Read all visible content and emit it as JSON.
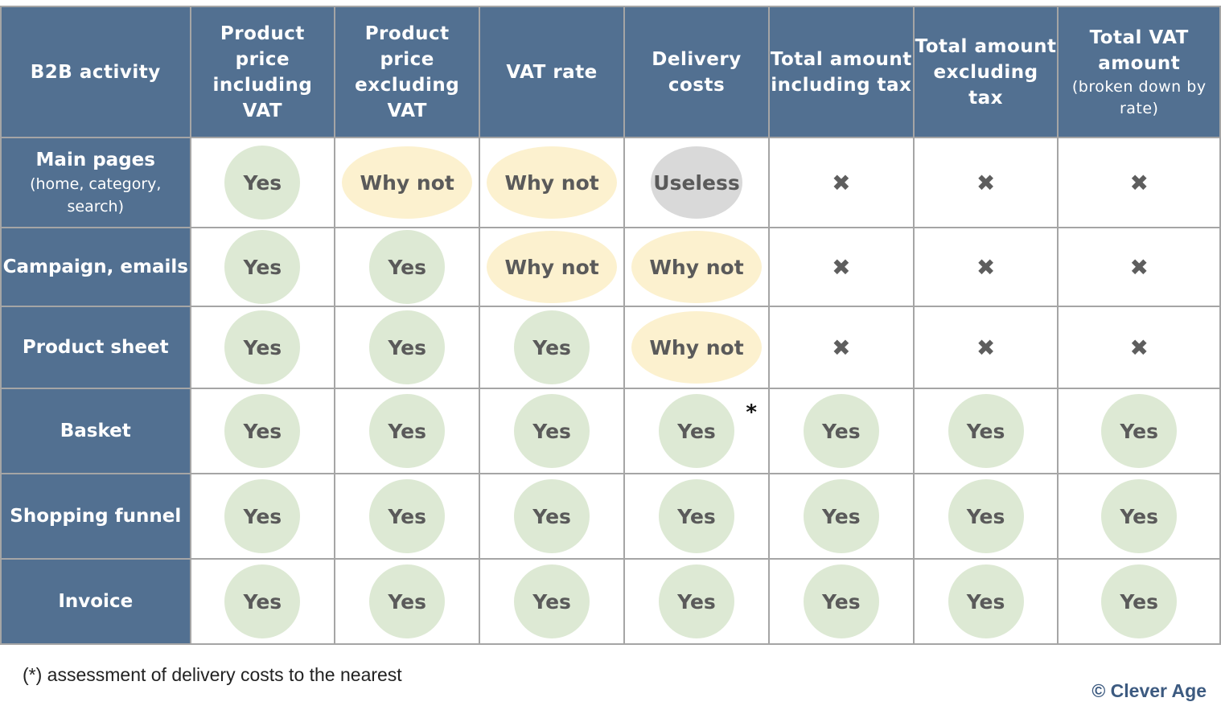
{
  "header": {
    "corner": "B2B activity",
    "columns": [
      {
        "label": "Product price including VAT"
      },
      {
        "label": "Product price excluding VAT"
      },
      {
        "label": "VAT rate"
      },
      {
        "label": "Delivery costs"
      },
      {
        "label": "Total amount including tax"
      },
      {
        "label": "Total amount excluding tax"
      },
      {
        "label": "Total VAT amount",
        "sub": "(broken down by rate)"
      }
    ]
  },
  "rows": [
    {
      "label": "Main pages",
      "sub": "(home, category, search)",
      "cells": [
        {
          "t": "yes",
          "v": "Yes"
        },
        {
          "t": "whynot",
          "v": "Why not"
        },
        {
          "t": "whynot",
          "v": "Why not"
        },
        {
          "t": "useless",
          "v": "Useless"
        },
        {
          "t": "cross",
          "v": "✖"
        },
        {
          "t": "cross",
          "v": "✖"
        },
        {
          "t": "cross",
          "v": "✖"
        }
      ]
    },
    {
      "label": "Campaign, emails",
      "cells": [
        {
          "t": "yes",
          "v": "Yes"
        },
        {
          "t": "yes",
          "v": "Yes"
        },
        {
          "t": "whynot",
          "v": "Why not"
        },
        {
          "t": "whynot",
          "v": "Why not"
        },
        {
          "t": "cross",
          "v": "✖"
        },
        {
          "t": "cross",
          "v": "✖"
        },
        {
          "t": "cross",
          "v": "✖"
        }
      ]
    },
    {
      "label": "Product sheet",
      "cells": [
        {
          "t": "yes",
          "v": "Yes"
        },
        {
          "t": "yes",
          "v": "Yes"
        },
        {
          "t": "yes",
          "v": "Yes"
        },
        {
          "t": "whynot",
          "v": "Why not"
        },
        {
          "t": "cross",
          "v": "✖"
        },
        {
          "t": "cross",
          "v": "✖"
        },
        {
          "t": "cross",
          "v": "✖"
        }
      ]
    },
    {
      "label": "Basket",
      "cells": [
        {
          "t": "yes",
          "v": "Yes"
        },
        {
          "t": "yes",
          "v": "Yes"
        },
        {
          "t": "yes",
          "v": "Yes"
        },
        {
          "t": "yes",
          "v": "Yes",
          "note": "*"
        },
        {
          "t": "yes",
          "v": "Yes"
        },
        {
          "t": "yes",
          "v": "Yes"
        },
        {
          "t": "yes",
          "v": "Yes"
        }
      ]
    },
    {
      "label": "Shopping funnel",
      "cells": [
        {
          "t": "yes",
          "v": "Yes"
        },
        {
          "t": "yes",
          "v": "Yes"
        },
        {
          "t": "yes",
          "v": "Yes"
        },
        {
          "t": "yes",
          "v": "Yes"
        },
        {
          "t": "yes",
          "v": "Yes"
        },
        {
          "t": "yes",
          "v": "Yes"
        },
        {
          "t": "yes",
          "v": "Yes"
        }
      ]
    },
    {
      "label": "Invoice",
      "cells": [
        {
          "t": "yes",
          "v": "Yes"
        },
        {
          "t": "yes",
          "v": "Yes"
        },
        {
          "t": "yes",
          "v": "Yes"
        },
        {
          "t": "yes",
          "v": "Yes"
        },
        {
          "t": "yes",
          "v": "Yes"
        },
        {
          "t": "yes",
          "v": "Yes"
        },
        {
          "t": "yes",
          "v": "Yes"
        }
      ]
    }
  ],
  "colors": {
    "header": "#527091",
    "yes": "#dde9d4",
    "whynot": "#fcf1cf",
    "useless": "#d9d9d9",
    "brand": "#3c5a80"
  },
  "footnote": "(*) assessment of delivery costs to the nearest",
  "logo": "© Clever Age"
}
